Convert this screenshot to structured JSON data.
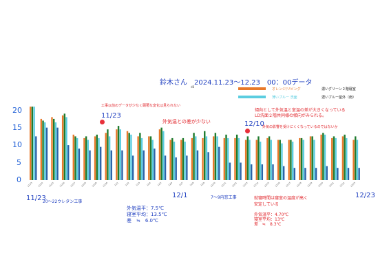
{
  "header": {
    "title": "鈴木さん　2024.11.23〜12.23　00：00データ",
    "subtitle_tiny": "dB"
  },
  "legend": {
    "items": [
      {
        "label": "オレンジ/リビング",
        "color": "#e8792a"
      },
      {
        "label": "濃いグリーン２階寝室",
        "color": "#1e7b2e"
      },
      {
        "label": "薄いブルー 洗面",
        "color": "#5bcde0"
      },
      {
        "label": "濃いブルー屋外（南）",
        "color": "#2a63a8"
      }
    ]
  },
  "annotations": {
    "note_top_left": "工事以前のデータが少なく顕著な変化は見られない",
    "date_1123": "11/23",
    "note_diff_small": "外気温との差が少ない",
    "note_right_line1": "傾向として外気温と室温の差が大きくなっている",
    "note_right_line2": "LD洗面２階共同様の傾向がみられる。",
    "date_1210": "12/10",
    "note_1210": "外気の影響を受けにくくなっているのではないか",
    "x_start": "11/23",
    "x_mid": "12/1",
    "x_end": "12/23",
    "work1": "20〜22ウレタン工事",
    "work2": "7〜9内窓工事",
    "stats_before_line1": "外気温平：7.5℃",
    "stats_before_line2": "寝室平均：13.5℃",
    "stats_before_line3": "差　≒　6.0℃",
    "after_line1": "就寝時間は寝室の温度が高く",
    "after_line2": "安定している",
    "stats_after_line1": "外気温平：4.70℃",
    "stats_after_line2": "寝室平均：13℃",
    "stats_after_line3": "差　≒　8.3℃"
  },
  "chart_data": {
    "type": "bar",
    "ylim": [
      0,
      22
    ],
    "yticks": [
      0,
      5,
      10,
      15,
      20
    ],
    "categories": [
      "11/23",
      "11/24",
      "11/25",
      "11/26",
      "11/27",
      "11/28",
      "11/29",
      "11/30",
      "12/1",
      "12/2",
      "12/3",
      "12/4",
      "12/5",
      "12/6",
      "12/7",
      "12/8",
      "12/9",
      "12/10",
      "12/11",
      "12/12",
      "12/13",
      "12/14",
      "12/15",
      "12/16",
      "12/17",
      "12/18",
      "12/19",
      "12/20",
      "12/21",
      "12/22",
      "12/23"
    ],
    "series": [
      {
        "name": "オレンジ/リビング",
        "color": "#e8792a",
        "values": [
          21.0,
          17.5,
          18.0,
          18.5,
          13.0,
          12.0,
          12.5,
          13.5,
          14.5,
          14.0,
          12.5,
          12.5,
          14.5,
          11.5,
          11.5,
          12.0,
          12.0,
          12.5,
          12.0,
          12.0,
          11.5,
          11.5,
          12.0,
          11.5,
          11.5,
          12.0,
          12.5,
          13.0,
          12.0,
          12.5,
          11.5
        ]
      },
      {
        "name": "濃いグリーン２階寝室",
        "color": "#1e7b2e",
        "values": [
          21.0,
          17.0,
          17.5,
          19.0,
          12.5,
          12.5,
          13.0,
          14.5,
          15.5,
          13.5,
          13.5,
          12.5,
          15.0,
          12.0,
          12.0,
          13.5,
          14.0,
          13.5,
          13.0,
          13.0,
          12.5,
          12.5,
          12.5,
          11.5,
          11.5,
          12.0,
          12.5,
          13.5,
          12.5,
          13.0,
          12.5
        ]
      },
      {
        "name": "薄いブルー 洗面",
        "color": "#5bcde0",
        "values": [
          21.0,
          16.5,
          16.5,
          18.0,
          12.0,
          11.5,
          12.0,
          12.5,
          14.5,
          13.0,
          12.0,
          11.5,
          14.0,
          11.0,
          11.0,
          12.5,
          12.5,
          12.5,
          12.0,
          12.0,
          11.5,
          11.0,
          11.5,
          10.5,
          11.0,
          11.5,
          11.5,
          13.0,
          12.0,
          12.0,
          11.5
        ]
      },
      {
        "name": "濃いブルー屋外（南）",
        "color": "#2a63a8",
        "values": [
          12.5,
          15.0,
          15.0,
          10.0,
          9.0,
          8.5,
          9.5,
          8.5,
          8.5,
          7.0,
          8.5,
          9.0,
          7.0,
          6.5,
          7.0,
          8.5,
          8.0,
          9.5,
          5.0,
          5.0,
          4.5,
          4.5,
          4.5,
          4.0,
          3.5,
          3.5,
          3.5,
          4.0,
          3.5,
          3.5,
          3.5
        ]
      }
    ]
  }
}
